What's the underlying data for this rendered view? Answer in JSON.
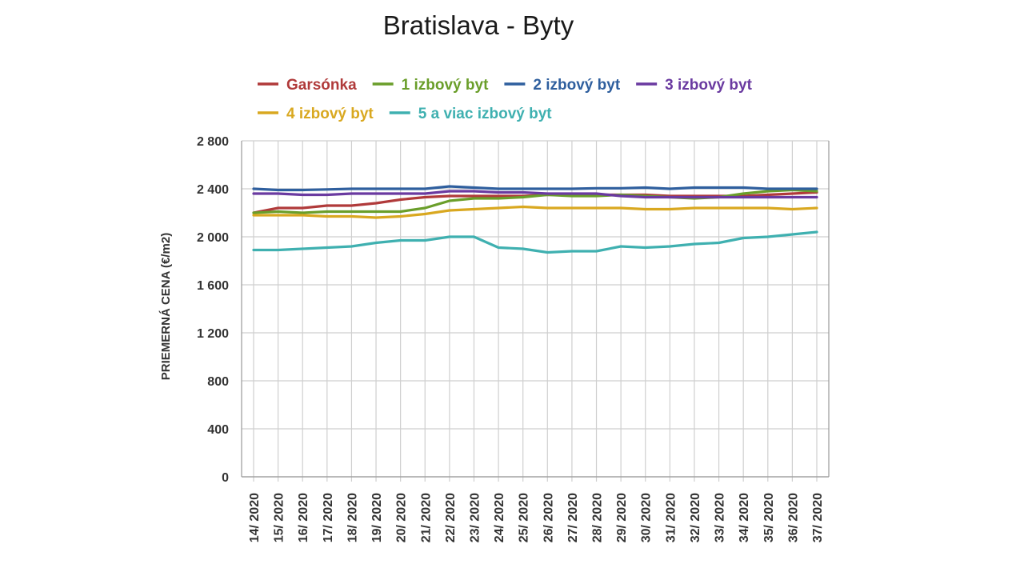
{
  "chart_data": {
    "type": "line",
    "title": "Bratislava - Byty",
    "ylabel": "PRIEMERNÁ CENA (€/m2)",
    "xlabel": "",
    "ylim": [
      0,
      2800
    ],
    "yticks": [
      0,
      400,
      800,
      1200,
      1600,
      2000,
      2400,
      2800
    ],
    "ytick_labels": [
      "0",
      "400",
      "800",
      "1 200",
      "1 600",
      "2 000",
      "2 400",
      "2 800"
    ],
    "grid": true,
    "legend_position": "top",
    "x": [
      "14/ 2020",
      "15/ 2020",
      "16/ 2020",
      "17/ 2020",
      "18/ 2020",
      "19/ 2020",
      "20/ 2020",
      "21/ 2020",
      "22/ 2020",
      "23/ 2020",
      "24/ 2020",
      "25/ 2020",
      "26/ 2020",
      "27/ 2020",
      "28/ 2020",
      "29/ 2020",
      "30/ 2020",
      "31/ 2020",
      "32/ 2020",
      "33/ 2020",
      "34/ 2020",
      "35/ 2020",
      "36/ 2020",
      "37/ 2020"
    ],
    "series": [
      {
        "name": "Garsónka",
        "color": "#b03a3a",
        "values": [
          2200,
          2240,
          2240,
          2260,
          2260,
          2280,
          2310,
          2330,
          2340,
          2340,
          2340,
          2340,
          2350,
          2350,
          2350,
          2350,
          2350,
          2340,
          2340,
          2340,
          2340,
          2350,
          2360,
          2370
        ]
      },
      {
        "name": "1 izbový byt",
        "color": "#6a9e2a",
        "values": [
          2200,
          2210,
          2200,
          2210,
          2210,
          2210,
          2210,
          2240,
          2300,
          2320,
          2320,
          2330,
          2350,
          2340,
          2340,
          2350,
          2340,
          2330,
          2320,
          2330,
          2360,
          2380,
          2390,
          2380
        ]
      },
      {
        "name": "2 izbový byt",
        "color": "#2f5f9e",
        "values": [
          2400,
          2390,
          2390,
          2395,
          2400,
          2400,
          2400,
          2400,
          2420,
          2410,
          2400,
          2400,
          2400,
          2400,
          2405,
          2405,
          2410,
          2400,
          2410,
          2410,
          2410,
          2400,
          2400,
          2400
        ]
      },
      {
        "name": "3 izbový byt",
        "color": "#6a3aa0",
        "values": [
          2360,
          2360,
          2350,
          2350,
          2360,
          2360,
          2360,
          2360,
          2380,
          2380,
          2370,
          2370,
          2360,
          2360,
          2360,
          2340,
          2330,
          2330,
          2330,
          2330,
          2330,
          2330,
          2330,
          2330
        ]
      },
      {
        "name": "4 izbový byt",
        "color": "#d9a820",
        "values": [
          2180,
          2180,
          2180,
          2170,
          2170,
          2160,
          2170,
          2190,
          2220,
          2230,
          2240,
          2250,
          2240,
          2240,
          2240,
          2240,
          2230,
          2230,
          2240,
          2240,
          2240,
          2240,
          2230,
          2240
        ]
      },
      {
        "name": "5 a viac izbový byt",
        "color": "#3fb0b0",
        "values": [
          1890,
          1890,
          1900,
          1910,
          1920,
          1950,
          1970,
          1970,
          2000,
          2000,
          1910,
          1900,
          1870,
          1880,
          1880,
          1920,
          1910,
          1920,
          1940,
          1950,
          1990,
          2000,
          2020,
          2040
        ]
      }
    ]
  }
}
